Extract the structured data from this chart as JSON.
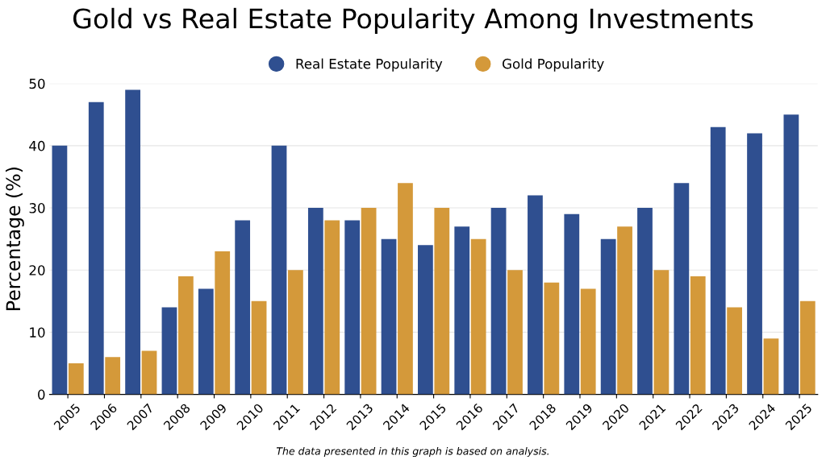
{
  "chart_data": {
    "type": "bar",
    "title": "Gold vs Real Estate Popularity Among Investments",
    "ylabel": "Percentage (%)",
    "categories": [
      "2005",
      "2006",
      "2007",
      "2008",
      "2009",
      "2010",
      "2011",
      "2012",
      "2013",
      "2014",
      "2015",
      "2016",
      "2017",
      "2018",
      "2019",
      "2020",
      "2021",
      "2022",
      "2023",
      "2024",
      "2025"
    ],
    "series": [
      {
        "name": "Real Estate Popularity",
        "color": "#2f4f90",
        "values": [
          40,
          47,
          49,
          14,
          17,
          28,
          40,
          30,
          28,
          25,
          24,
          27,
          30,
          32,
          29,
          25,
          30,
          34,
          43,
          42,
          45
        ]
      },
      {
        "name": "Gold Popularity",
        "color": "#d4993a",
        "values": [
          5,
          6,
          7,
          19,
          23,
          15,
          20,
          28,
          30,
          34,
          30,
          25,
          20,
          18,
          17,
          27,
          20,
          19,
          14,
          9,
          15
        ]
      }
    ],
    "ylim": [
      0,
      50
    ],
    "yticks": [
      0,
      10,
      20,
      30,
      40,
      50
    ],
    "grid": "y",
    "legend": "top",
    "annotations": [
      "The data presented in this graph is based on analysis."
    ]
  }
}
